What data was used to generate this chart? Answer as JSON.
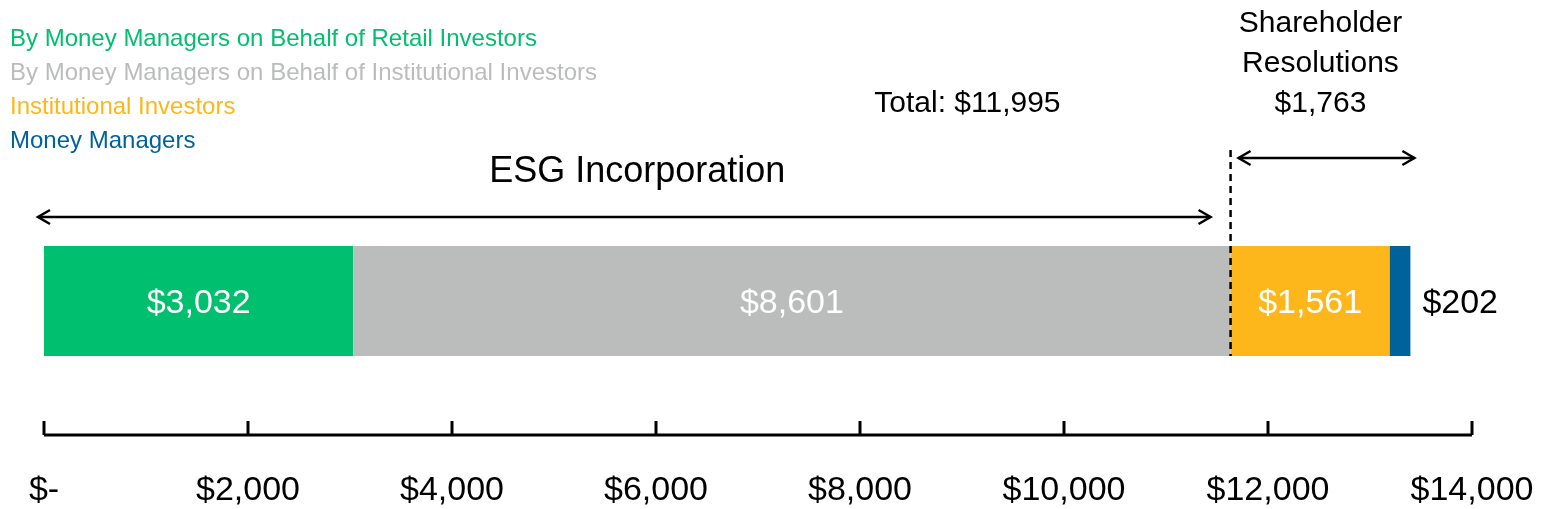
{
  "chart_data": {
    "type": "bar",
    "orientation": "horizontal",
    "stacked": true,
    "categories": [
      null
    ],
    "series": [
      {
        "name": "By Money Managers on Behalf of Retail Investors",
        "color": "#00bf6f",
        "values": [
          3032
        ],
        "value_labels": [
          "$3,032"
        ]
      },
      {
        "name": "By Money Managers on Behalf of Institutional Investors",
        "color": "#bbbcbc",
        "values": [
          8601
        ],
        "value_labels": [
          "$8,601"
        ]
      },
      {
        "name": "Institutional Investors",
        "color": "#fdb71a",
        "values": [
          1561
        ],
        "value_labels": [
          "$1,561"
        ]
      },
      {
        "name": "Money Managers",
        "color": "#00629b",
        "values": [
          202
        ],
        "value_labels": [
          "$202"
        ]
      }
    ],
    "xlim": [
      0,
      14000
    ],
    "xticks": [
      {
        "value": 0,
        "label": "$-"
      },
      {
        "value": 2000,
        "label": "$2,000"
      },
      {
        "value": 4000,
        "label": "$4,000"
      },
      {
        "value": 6000,
        "label": "$6,000"
      },
      {
        "value": 8000,
        "label": "$8,000"
      },
      {
        "value": 10000,
        "label": "$10,000"
      },
      {
        "value": 12000,
        "label": "$12,000"
      },
      {
        "value": 14000,
        "label": "$14,000"
      }
    ],
    "annotations": [
      "Total: $11,995",
      "ESG Incorporation",
      "Shareholder\nResolutions\n$1,763"
    ],
    "ref_lines": [
      {
        "axis": "x",
        "value": 11633,
        "line_style": "dashed",
        "color": "#000000"
      }
    ],
    "legend": "top left",
    "grid": false
  }
}
